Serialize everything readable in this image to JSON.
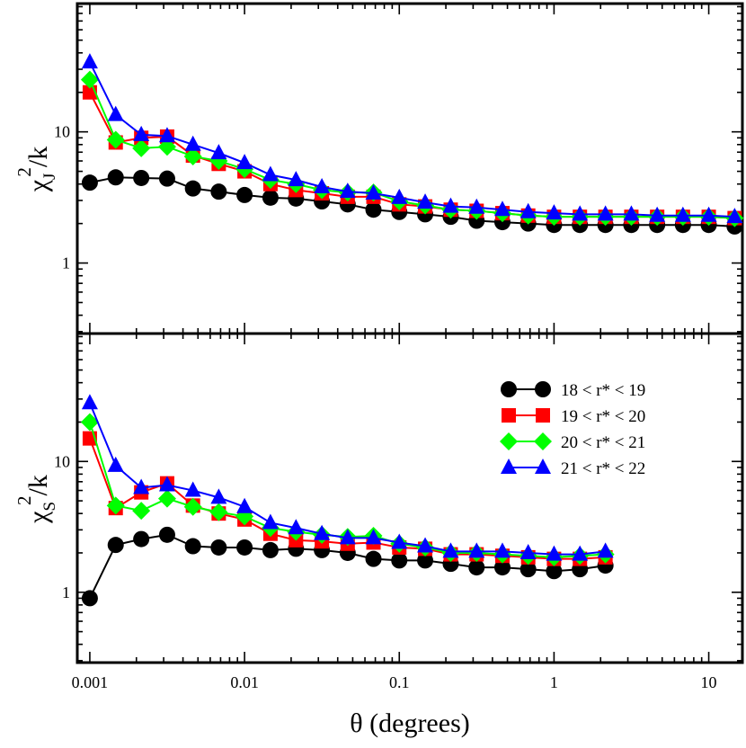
{
  "chart_data": [
    {
      "type": "line",
      "panel": "top",
      "ylabel": "χ_J^2/k",
      "xlabel": "",
      "xscale": "log",
      "yscale": "log",
      "xlim": [
        0.00083,
        16.5
      ],
      "ylim": [
        0.29,
        95
      ],
      "series": [
        {
          "name": "18 < r* < 19",
          "color": "#000000",
          "marker": "circle",
          "x": [
            0.001,
            0.00147,
            0.00215,
            0.00316,
            0.00464,
            0.00681,
            0.01,
            0.0147,
            0.0215,
            0.0316,
            0.0464,
            0.0681,
            0.1,
            0.147,
            0.215,
            0.316,
            0.464,
            0.681,
            1.0,
            1.47,
            2.15,
            3.16,
            4.64,
            6.81,
            10.0,
            14.7
          ],
          "values": [
            4.1,
            4.5,
            4.45,
            4.4,
            3.7,
            3.5,
            3.3,
            3.15,
            3.1,
            2.95,
            2.8,
            2.55,
            2.45,
            2.35,
            2.25,
            2.1,
            2.05,
            2.0,
            1.95,
            1.95,
            1.95,
            1.95,
            1.95,
            1.95,
            1.95,
            1.9
          ]
        },
        {
          "name": "19 < r* < 20",
          "color": "#ff0000",
          "marker": "square",
          "x": [
            0.001,
            0.00147,
            0.00215,
            0.00316,
            0.00464,
            0.00681,
            0.01,
            0.0147,
            0.0215,
            0.0316,
            0.0464,
            0.0681,
            0.1,
            0.147,
            0.215,
            0.316,
            0.464,
            0.681,
            1.0,
            1.47,
            2.15,
            3.16,
            4.64,
            6.81,
            10.0,
            14.7
          ],
          "values": [
            20,
            8.3,
            9.0,
            9.2,
            6.6,
            5.7,
            5.0,
            4.0,
            3.6,
            3.4,
            3.2,
            3.2,
            2.8,
            2.7,
            2.55,
            2.5,
            2.4,
            2.3,
            2.25,
            2.25,
            2.25,
            2.25,
            2.25,
            2.25,
            2.25,
            2.2
          ]
        },
        {
          "name": "20 < r* < 21",
          "color": "#00ff00",
          "marker": "diamond",
          "x": [
            0.001,
            0.00147,
            0.00215,
            0.00316,
            0.00464,
            0.00681,
            0.01,
            0.0147,
            0.0215,
            0.0316,
            0.0464,
            0.0681,
            0.1,
            0.147,
            0.215,
            0.316,
            0.464,
            0.681,
            1.0,
            1.47,
            2.15,
            3.16,
            4.64,
            6.81,
            10.0,
            14.7
          ],
          "values": [
            25,
            8.7,
            7.5,
            7.7,
            6.5,
            6.0,
            5.2,
            4.3,
            4.0,
            3.6,
            3.45,
            3.45,
            2.95,
            2.75,
            2.55,
            2.5,
            2.4,
            2.3,
            2.25,
            2.25,
            2.25,
            2.25,
            2.25,
            2.25,
            2.25,
            2.2
          ]
        },
        {
          "name": "21 < r* < 22",
          "color": "#0000ff",
          "marker": "triangle",
          "x": [
            0.001,
            0.00147,
            0.00215,
            0.00316,
            0.00464,
            0.00681,
            0.01,
            0.0147,
            0.0215,
            0.0316,
            0.0464,
            0.0681,
            0.1,
            0.147,
            0.215,
            0.316,
            0.464,
            0.681,
            1.0,
            1.47,
            2.15,
            3.16,
            4.64,
            6.81,
            10.0,
            14.7
          ],
          "values": [
            34,
            13.5,
            9.5,
            9.3,
            8.0,
            6.9,
            5.8,
            4.7,
            4.3,
            3.8,
            3.5,
            3.4,
            3.15,
            2.9,
            2.7,
            2.65,
            2.55,
            2.45,
            2.4,
            2.35,
            2.35,
            2.35,
            2.3,
            2.3,
            2.3,
            2.25
          ]
        }
      ],
      "yticks": [
        {
          "value": 1,
          "label": "1"
        },
        {
          "value": 10,
          "label": "10"
        }
      ]
    },
    {
      "type": "line",
      "panel": "bottom",
      "ylabel": "χ_S^2/k",
      "xlabel": "θ (degrees)",
      "xscale": "log",
      "yscale": "log",
      "xlim": [
        0.00083,
        16.5
      ],
      "ylim": [
        0.29,
        95
      ],
      "series": [
        {
          "name": "18 < r* < 19",
          "color": "#000000",
          "marker": "circle",
          "x": [
            0.001,
            0.00147,
            0.00215,
            0.00316,
            0.00464,
            0.00681,
            0.01,
            0.0147,
            0.0215,
            0.0316,
            0.0464,
            0.0681,
            0.1,
            0.147,
            0.215,
            0.316,
            0.464,
            0.681,
            1.0,
            1.47,
            2.15
          ],
          "values": [
            0.9,
            2.3,
            2.55,
            2.75,
            2.25,
            2.2,
            2.2,
            2.1,
            2.15,
            2.1,
            2.0,
            1.8,
            1.75,
            1.75,
            1.65,
            1.55,
            1.55,
            1.5,
            1.45,
            1.5,
            1.6
          ]
        },
        {
          "name": "19 < r* < 20",
          "color": "#ff0000",
          "marker": "square",
          "x": [
            0.001,
            0.00147,
            0.00215,
            0.00316,
            0.00464,
            0.00681,
            0.01,
            0.0147,
            0.0215,
            0.0316,
            0.0464,
            0.0681,
            0.1,
            0.147,
            0.215,
            0.316,
            0.464,
            0.681,
            1.0,
            1.47,
            2.15
          ],
          "values": [
            15,
            4.4,
            5.8,
            6.8,
            4.6,
            4.0,
            3.6,
            2.8,
            2.5,
            2.45,
            2.35,
            2.4,
            2.2,
            2.15,
            1.95,
            1.95,
            1.9,
            1.85,
            1.8,
            1.8,
            1.85
          ]
        },
        {
          "name": "20 < r* < 21",
          "color": "#00ff00",
          "marker": "diamond",
          "x": [
            0.001,
            0.00147,
            0.00215,
            0.00316,
            0.00464,
            0.00681,
            0.01,
            0.0147,
            0.0215,
            0.0316,
            0.0464,
            0.0681,
            0.1,
            0.147,
            0.215,
            0.316,
            0.464,
            0.681,
            1.0,
            1.47,
            2.15
          ],
          "values": [
            20,
            4.6,
            4.2,
            5.2,
            4.5,
            4.1,
            3.8,
            3.1,
            2.9,
            2.75,
            2.65,
            2.7,
            2.35,
            2.2,
            2.0,
            2.0,
            1.95,
            1.9,
            1.85,
            1.9,
            1.95
          ]
        },
        {
          "name": "21 < r* < 22",
          "color": "#0000ff",
          "marker": "triangle",
          "x": [
            0.001,
            0.00147,
            0.00215,
            0.00316,
            0.00464,
            0.00681,
            0.01,
            0.0147,
            0.0215,
            0.0316,
            0.0464,
            0.0681,
            0.1,
            0.147,
            0.215,
            0.316,
            0.464,
            0.681,
            1.0,
            1.47,
            2.15
          ],
          "values": [
            28,
            9.3,
            6.3,
            6.6,
            6.0,
            5.3,
            4.5,
            3.4,
            3.1,
            2.8,
            2.6,
            2.6,
            2.4,
            2.25,
            2.05,
            2.05,
            2.05,
            2.0,
            1.95,
            1.95,
            2.05
          ]
        }
      ],
      "yticks": [
        {
          "value": 1,
          "label": "1"
        },
        {
          "value": 10,
          "label": "10"
        }
      ]
    }
  ],
  "xaxis": {
    "label": "θ (degrees)",
    "ticks": [
      {
        "value": 0.001,
        "label": "0.001"
      },
      {
        "value": 0.01,
        "label": "0.01"
      },
      {
        "value": 0.1,
        "label": "0.1"
      },
      {
        "value": 1,
        "label": "1"
      },
      {
        "value": 10,
        "label": "10"
      }
    ]
  },
  "ylabels": {
    "top": {
      "base": "χ",
      "sub": "J",
      "sup": "2",
      "tail": "/k"
    },
    "bottom": {
      "base": "χ",
      "sub": "S",
      "sup": "2",
      "tail": "/k"
    }
  },
  "legend": {
    "placement": "bottom-panel top-right",
    "entries": [
      {
        "label": "18 < r* < 19",
        "color": "#000000",
        "marker": "circle"
      },
      {
        "label": "19 < r* < 20",
        "color": "#ff0000",
        "marker": "square"
      },
      {
        "label": "20 < r* < 21",
        "color": "#00ff00",
        "marker": "diamond"
      },
      {
        "label": "21 < r* < 22",
        "color": "#0000ff",
        "marker": "triangle"
      }
    ]
  }
}
